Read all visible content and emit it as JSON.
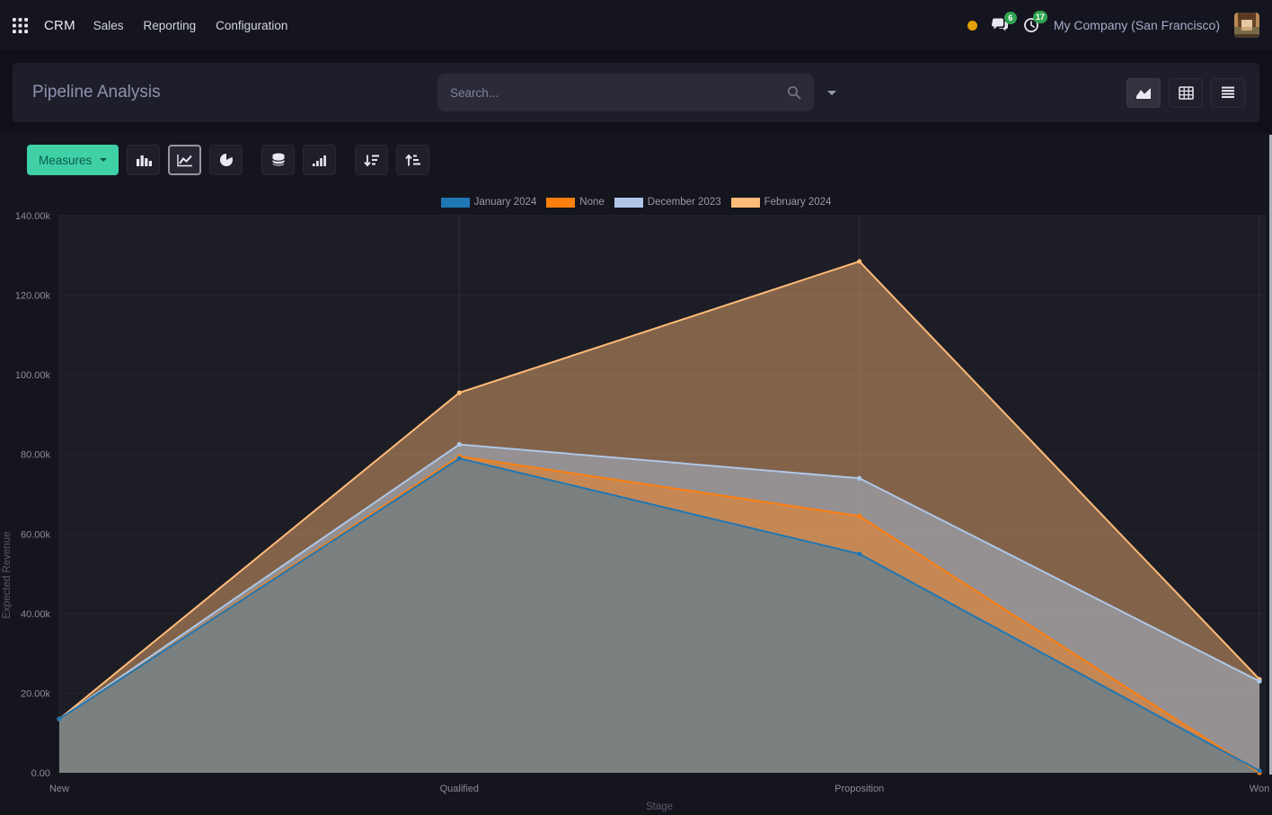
{
  "navbar": {
    "brand": "CRM",
    "menus": [
      {
        "label": "Sales"
      },
      {
        "label": "Reporting"
      },
      {
        "label": "Configuration"
      }
    ],
    "systray": {
      "messages_badge": "6",
      "activities_badge": "17",
      "company": "My Company (San Francisco)"
    }
  },
  "control_panel": {
    "title": "Pipeline Analysis",
    "search_placeholder": "Search...",
    "view_switcher": [
      "graph",
      "pivot",
      "list"
    ],
    "active_view": "graph"
  },
  "toolbar": {
    "measures_label": "Measures",
    "chart_type_buttons": [
      "bar",
      "line",
      "pie"
    ],
    "active_chart_type": "line",
    "extra_buttons": [
      "stacked",
      "cumulative",
      "sort-descending",
      "sort-ascending"
    ]
  },
  "icons": {
    "apps": "grid-dots",
    "search": "magnifier",
    "messages": "speech-bubbles",
    "activities": "clock",
    "graph_view": "area-chart",
    "pivot_view": "table",
    "list_view": "lines",
    "bar": "bar-chart",
    "line": "line-chart",
    "pie": "pie-chart",
    "stacked": "database",
    "cumulative": "signal-bars",
    "sort_desc": "arrow-down-bars",
    "sort_asc": "arrow-up-bars",
    "caret": "triangle-down"
  },
  "theme": {
    "accent_teal": "#3fd0a6",
    "badge_green": "#2fa34f",
    "amber_dot": "#e3a008",
    "navbar_bg": "#15151f",
    "panel_bg": "#1e1e2b",
    "content_bg": "#15151d"
  },
  "chart_data": {
    "type": "area",
    "title": "",
    "x": [
      "New",
      "Qualified",
      "Proposition",
      "Won"
    ],
    "xlabel": "Stage",
    "ylabel": "Expected Revenue",
    "ylim": [
      0,
      140000
    ],
    "ytick_step": 20000,
    "ytick_labels": [
      "0.00",
      "20.00k",
      "40.00k",
      "60.00k",
      "80.00k",
      "100.00k",
      "120.00k",
      "140.00k"
    ],
    "grid": true,
    "legend_position": "top",
    "fill_opacity": 0.45,
    "series": [
      {
        "name": "January 2024",
        "color": "#1f77b4",
        "values": [
          13500,
          79000,
          55000,
          500
        ]
      },
      {
        "name": "None",
        "color": "#ff7f0e",
        "values": [
          13500,
          79500,
          64500,
          0
        ]
      },
      {
        "name": "December 2023",
        "color": "#aec7e8",
        "values": [
          13500,
          82500,
          74000,
          23000
        ]
      },
      {
        "name": "February 2024",
        "color": "#ffbb78",
        "values": [
          13500,
          95500,
          128500,
          23500
        ]
      }
    ],
    "colors": {
      "plot_background": "#1d1d26",
      "grid_line": "rgba(255,255,255,0.07)",
      "grid_line_h": "rgba(255,255,255,0.04)",
      "tick_text": "#8b8b99"
    }
  }
}
